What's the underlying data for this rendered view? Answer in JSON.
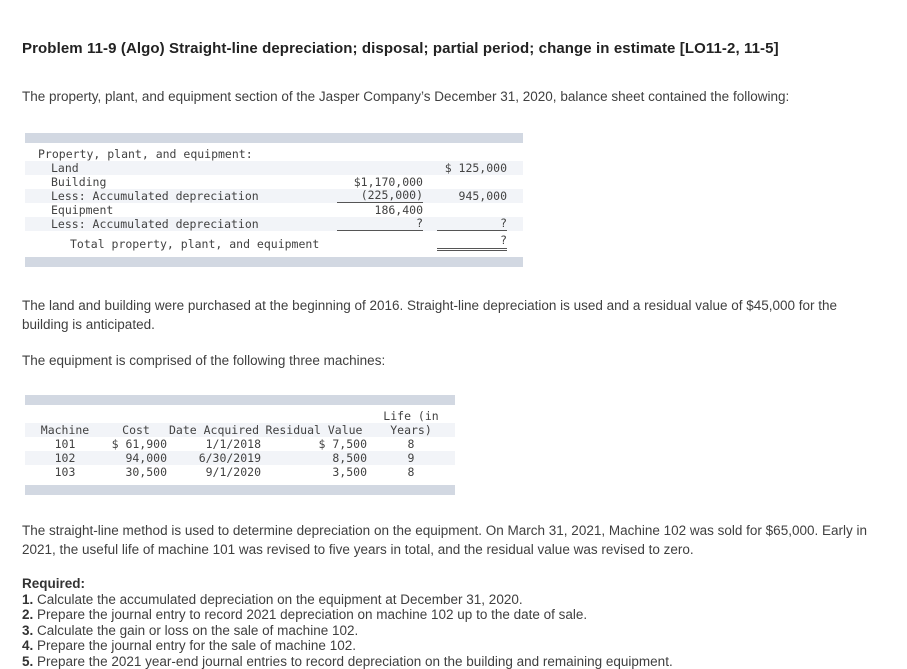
{
  "title": "Problem 11-9 (Algo) Straight-line depreciation; disposal; partial period; change in estimate [LO11-2, 11-5]",
  "paragraphs": {
    "intro": "The property, plant, and equipment section of the Jasper Company’s December 31, 2020, balance sheet contained the following:",
    "land_building": "The land and building were purchased at the beginning of 2016. Straight-line depreciation is used and a residual value of $45,000 for the building is anticipated.",
    "equipment_intro": "The equipment is comprised of the following three machines:",
    "method": "The straight-line method is used to determine depreciation on the equipment. On March 31, 2021, Machine 102 was sold for $65,000. Early in 2021, the useful life of machine 101 was revised to five years in total, and the residual value was revised to zero."
  },
  "ppe_table": {
    "rows": [
      {
        "label": "Property, plant, and equipment:",
        "col2": "",
        "col3": ""
      },
      {
        "label": "Land",
        "col2": "",
        "col3": "$ 125,000"
      },
      {
        "label": "Building",
        "col2": "$1,170,000",
        "col3": ""
      },
      {
        "label": "Less: Accumulated depreciation",
        "col2": "(225,000)",
        "col3": "945,000"
      },
      {
        "label": "Equipment",
        "col2": "186,400",
        "col3": ""
      },
      {
        "label": "Less: Accumulated depreciation",
        "col2": "?",
        "col3": "?"
      },
      {
        "label": "Total property, plant, and equipment",
        "col2": "",
        "col3": "?"
      }
    ]
  },
  "machines_table": {
    "headers": {
      "machine": "Machine",
      "cost": "Cost",
      "date": "Date Acquired",
      "residual": "Residual Value",
      "life_line1": "Life (in",
      "life_line2": "Years)"
    },
    "rows": [
      {
        "machine": "101",
        "cost": "$ 61,900",
        "date": "1/1/2018",
        "residual": "$ 7,500",
        "life": "8"
      },
      {
        "machine": "102",
        "cost": "94,000",
        "date": "6/30/2019",
        "residual": "8,500",
        "life": "9"
      },
      {
        "machine": "103",
        "cost": "30,500",
        "date": "9/1/2020",
        "residual": "3,500",
        "life": "8"
      }
    ]
  },
  "required": {
    "heading": "Required:",
    "items": [
      {
        "num": "1.",
        "text": "Calculate the accumulated depreciation on the equipment at December 31, 2020."
      },
      {
        "num": "2.",
        "text": "Prepare the journal entry to record 2021 depreciation on machine 102 up to the date of sale."
      },
      {
        "num": "3.",
        "text": "Calculate the gain or loss on the sale of machine 102."
      },
      {
        "num": "4.",
        "text": "Prepare the journal entry for the sale of machine 102."
      },
      {
        "num": "5.",
        "text": "Prepare the 2021 year-end journal entries to record depreciation on the building and remaining equipment."
      }
    ]
  },
  "colors": {
    "table_bar": "#d2d8e2",
    "row_shade": "#f2f4f8",
    "body_text": "#3f3f3f",
    "title_text": "#222222"
  }
}
